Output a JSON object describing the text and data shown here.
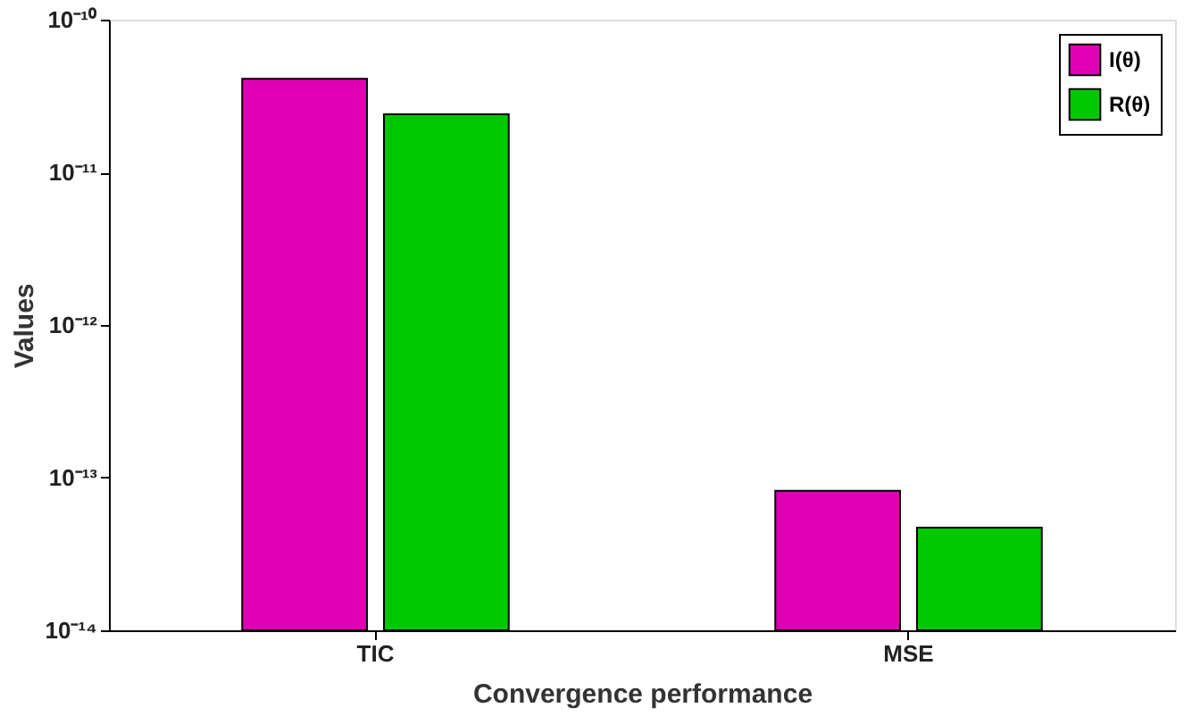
{
  "chart_data": {
    "type": "bar",
    "xlabel": "Convergence performance",
    "ylabel": "Values",
    "categories": [
      "TIC",
      "MSE"
    ],
    "series": [
      {
        "name": "I(θ)",
        "color": "#e000b4",
        "values": [
          4.1e-11,
          8.2e-14
        ]
      },
      {
        "name": "R(θ)",
        "color": "#00c800",
        "values": [
          2.4e-11,
          4.7e-14
        ]
      }
    ],
    "log": "y",
    "ylim": [
      1e-14,
      1e-10
    ],
    "yticks": [
      {
        "value": 1e-14,
        "label": "10⁻¹⁴"
      },
      {
        "value": 1e-13,
        "label": "10⁻¹³"
      },
      {
        "value": 1e-12,
        "label": "10⁻¹²"
      },
      {
        "value": 1e-11,
        "label": "10⁻¹¹"
      },
      {
        "value": 1e-10,
        "label": "10⁻¹⁰"
      }
    ],
    "grid": false,
    "legend": "top right"
  }
}
